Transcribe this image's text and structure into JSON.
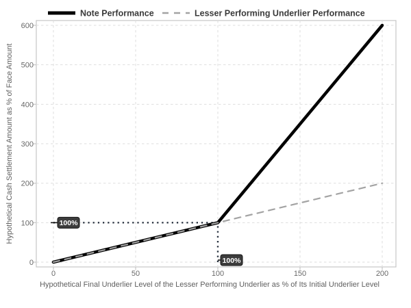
{
  "chart_data": {
    "type": "line",
    "title": "",
    "xlabel": "Hypothetical Final Underlier Level of the Lesser Performing Underlier as % of Its Initial Underlier Level",
    "ylabel": "Hypothetical Cash Settlement Amount as % of Face Amount",
    "xlim": [
      0,
      200
    ],
    "ylim": [
      0,
      600
    ],
    "x_ticks": [
      0,
      50,
      100,
      150,
      200
    ],
    "y_ticks": [
      0,
      100,
      200,
      300,
      400,
      500,
      600
    ],
    "grid": "dashed",
    "legend_position": "top",
    "series": [
      {
        "name": "Note Performance",
        "style": "solid",
        "color": "#000000",
        "width": 4.5,
        "points": [
          [
            0,
            0
          ],
          [
            100,
            100
          ],
          [
            200,
            600
          ]
        ]
      },
      {
        "name": "Lesser Performing Underlier Performance",
        "style": "dashed",
        "color": "#a3a3a3",
        "width": 2.2,
        "points": [
          [
            0,
            0
          ],
          [
            200,
            200
          ]
        ]
      }
    ],
    "reference_lines": [
      {
        "orientation": "horizontal",
        "y": 100,
        "x_from": 0,
        "x_to": 100
      },
      {
        "orientation": "vertical",
        "x": 100,
        "y_from": 0,
        "y_to": 100
      }
    ],
    "annotations": [
      {
        "label": "100%",
        "axis": "y",
        "value": 100
      },
      {
        "label": "100%",
        "axis": "x",
        "value": 100
      }
    ],
    "colors": {
      "grid": "#dedede",
      "panel_border": "#c6c6c6",
      "tick_text": "#686868",
      "axis_title_text": "#5f5f5f",
      "legend_text": "#3a3a3a",
      "reference_dotted": "#2b3442",
      "badge_background": "#3c3c3c",
      "badge_border": "#161616",
      "badge_text": "#ffffff",
      "background": "#ffffff"
    }
  }
}
